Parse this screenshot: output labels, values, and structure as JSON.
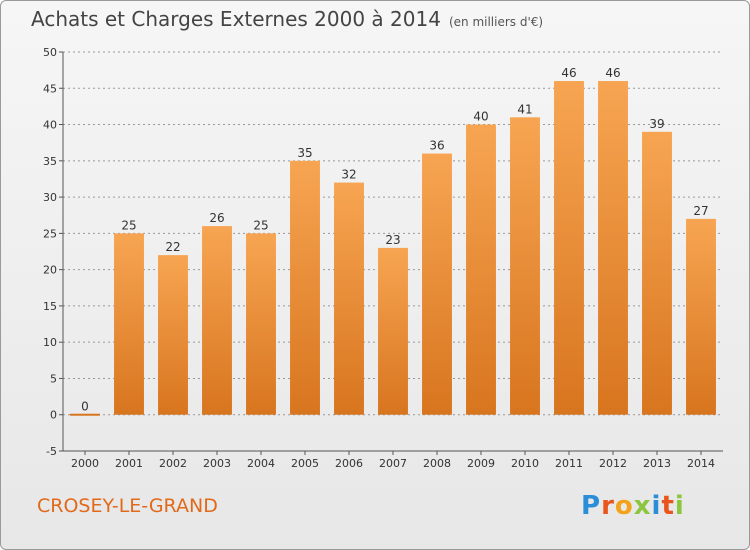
{
  "title": "Achats et Charges Externes 2000 à 2014",
  "unit": "(en milliers d'€)",
  "commune": "CROSEY-LE-GRAND",
  "logo": {
    "letters": [
      "P",
      "r",
      "o",
      "x",
      "i",
      "t",
      "i"
    ]
  },
  "colors": {
    "bar_top": "#f7a552",
    "bar_bottom": "#d8751f",
    "axis_text": "#333333",
    "grid": "#999999",
    "commune": "#e16a1a"
  },
  "chart_data": {
    "type": "bar",
    "categories": [
      "2000",
      "2001",
      "2002",
      "2003",
      "2004",
      "2005",
      "2006",
      "2007",
      "2008",
      "2009",
      "2010",
      "2011",
      "2012",
      "2013",
      "2014"
    ],
    "values": [
      0,
      25,
      22,
      26,
      25,
      35,
      32,
      23,
      36,
      40,
      41,
      46,
      46,
      39,
      27
    ],
    "ylim": [
      -5,
      50
    ],
    "yticks": [
      -5,
      0,
      5,
      10,
      15,
      20,
      25,
      30,
      35,
      40,
      45,
      50
    ],
    "grid": true,
    "xlabel": "",
    "ylabel": ""
  }
}
